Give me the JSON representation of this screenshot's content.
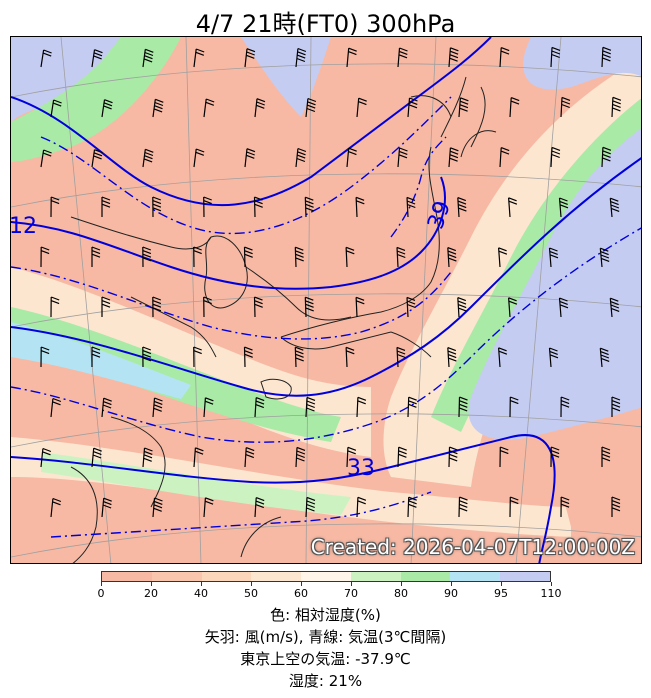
{
  "header": {
    "title": "4/7  21時(FT0)     300hPa"
  },
  "map": {
    "stamp": "Created: 2026-04-07T12:00:00Z",
    "contour_labels": [
      "12",
      "39",
      "33"
    ],
    "colors": {
      "rh_0_40": "#f7b9a4",
      "rh_40_60": "#fce0c4",
      "rh_60_70": "#fff6e6",
      "rh_70_80": "#c6f0b8",
      "rh_80_90": "#a7eaa3",
      "rh_90_95": "#b6e6f3",
      "rh_95_110": "#c6cdf2",
      "temp_contour": "#0000dd"
    }
  },
  "colorbar": {
    "ticks": [
      "0",
      "20",
      "40",
      "50",
      "60",
      "70",
      "80",
      "90",
      "95",
      "110"
    ],
    "colors": [
      "#f7b9a4",
      "#f9c6ad",
      "#fcd6bb",
      "#fde6cf",
      "#fff5e8",
      "#cdf2c2",
      "#a9eaa6",
      "#b4e4f4",
      "#c5ccf1"
    ]
  },
  "legend": {
    "line1": "色: 相対湿度(%)",
    "line2": "矢羽: 風(m/s),  青線: 気温(3℃間隔)",
    "line3": "東京上空の気温: -37.9℃",
    "line4": "湿度: 21%"
  }
}
